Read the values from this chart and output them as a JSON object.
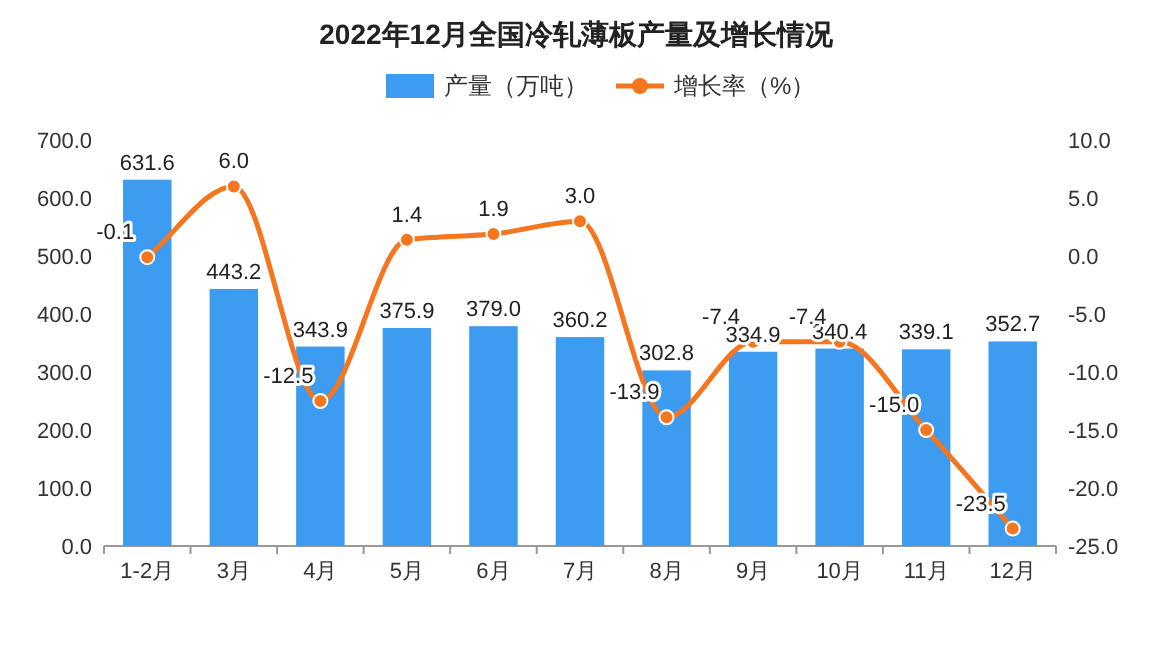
{
  "chart_data": {
    "type": "bar",
    "title": "2022年12月全国冷轧薄板产量及增长情况",
    "categories": [
      "1-2月",
      "3月",
      "4月",
      "5月",
      "6月",
      "7月",
      "8月",
      "9月",
      "10月",
      "11月",
      "12月"
    ],
    "series": [
      {
        "name": "产量（万吨）",
        "color": "#3d9cf0",
        "values": [
          631.6,
          443.2,
          343.9,
          375.9,
          379.0,
          360.2,
          302.8,
          334.9,
          340.4,
          339.1,
          352.7
        ],
        "value_labels": [
          "631.6",
          "443.2",
          "343.9",
          "375.9",
          "379.0",
          "360.2",
          "302.8",
          "334.9",
          "340.4",
          "339.1",
          "352.7"
        ]
      },
      {
        "name": "增长率（%）",
        "type": "line",
        "axis": "y2",
        "color": "#f5761f",
        "values": [
          -0.1,
          6.0,
          -12.5,
          1.4,
          1.9,
          3.0,
          -13.9,
          -7.4,
          -7.4,
          -15.0,
          -23.5
        ],
        "value_labels": [
          "-0.1",
          "6.0",
          "-12.5",
          "1.4",
          "1.9",
          "3.0",
          "-13.9",
          "-7.4",
          "-7.4",
          "-15.0",
          "-23.5"
        ]
      }
    ],
    "ylim": [
      0,
      700
    ],
    "yticks": [
      {
        "value": 0,
        "label": "0.0"
      },
      {
        "value": 100,
        "label": "100.0"
      },
      {
        "value": 200,
        "label": "200.0"
      },
      {
        "value": 300,
        "label": "300.0"
      },
      {
        "value": 400,
        "label": "400.0"
      },
      {
        "value": 500,
        "label": "500.0"
      },
      {
        "value": 600,
        "label": "600.0"
      },
      {
        "value": 700,
        "label": "700.0"
      }
    ],
    "y2lim": [
      -25,
      10
    ],
    "y2ticks": [
      {
        "value": -25,
        "label": "-25.0"
      },
      {
        "value": -20,
        "label": "-20.0"
      },
      {
        "value": -15,
        "label": "-15.0"
      },
      {
        "value": -10,
        "label": "-10.0"
      },
      {
        "value": -5,
        "label": "-5.0"
      },
      {
        "value": 0,
        "label": "0.0"
      },
      {
        "value": 5,
        "label": "5.0"
      },
      {
        "value": 10,
        "label": "10.0"
      }
    ],
    "legend": "top",
    "marker": "circle",
    "line_style": "solid",
    "grid": false
  }
}
